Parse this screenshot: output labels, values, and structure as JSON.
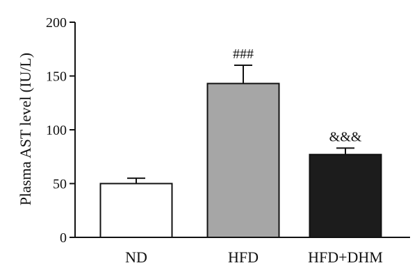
{
  "chart_data": {
    "type": "bar",
    "ylabel": "Plasma AST level (IU/L)",
    "xlabel": "",
    "ylim": [
      0,
      200
    ],
    "yticks": [
      "0",
      "50",
      "100",
      "150",
      "200"
    ],
    "categories": [
      "ND",
      "HFD",
      "HFD+DHM"
    ],
    "values": [
      50,
      143,
      77
    ],
    "errors": [
      5,
      17,
      6
    ],
    "annotations": [
      "",
      "###",
      "&&&"
    ],
    "bar_colors": [
      "#ffffff",
      "#a6a6a6",
      "#1c1c1c"
    ],
    "grid": false,
    "legend": "none"
  }
}
